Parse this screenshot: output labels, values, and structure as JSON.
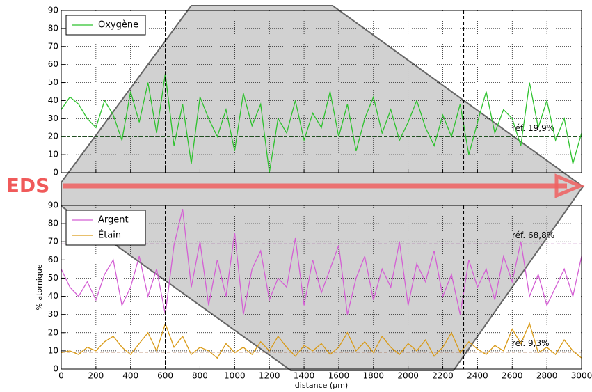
{
  "chart_data": [
    {
      "type": "line",
      "x": [
        0,
        50,
        100,
        150,
        200,
        250,
        300,
        350,
        400,
        450,
        500,
        550,
        600,
        650,
        700,
        750,
        800,
        850,
        900,
        950,
        1000,
        1050,
        1100,
        1150,
        1200,
        1250,
        1300,
        1350,
        1400,
        1450,
        1500,
        1550,
        1600,
        1650,
        1700,
        1750,
        1800,
        1850,
        1900,
        1950,
        2000,
        2050,
        2100,
        2150,
        2200,
        2250,
        2300,
        2350,
        2400,
        2450,
        2500,
        2550,
        2600,
        2650,
        2700,
        2750,
        2800,
        2850,
        2900,
        2950,
        3000
      ],
      "series": [
        {
          "name": "Oxygène",
          "color": "#2ec22e",
          "values": [
            35,
            42,
            38,
            30,
            25,
            40,
            32,
            18,
            45,
            28,
            50,
            22,
            55,
            15,
            38,
            5,
            42,
            30,
            20,
            35,
            12,
            44,
            26,
            38,
            0,
            30,
            22,
            40,
            18,
            33,
            25,
            45,
            20,
            38,
            12,
            30,
            42,
            22,
            35,
            18,
            28,
            40,
            25,
            15,
            32,
            20,
            38,
            10,
            28,
            45,
            22,
            35,
            30,
            15,
            50,
            25,
            40,
            18,
            30,
            5,
            22
          ]
        }
      ],
      "xlim": [
        0,
        3000
      ],
      "ylim": [
        0,
        90
      ],
      "xticks": [
        0,
        200,
        400,
        600,
        800,
        1000,
        1200,
        1400,
        1600,
        1800,
        2000,
        2200,
        2400,
        2600,
        2800,
        3000
      ],
      "yticks": [
        0,
        10,
        20,
        30,
        40,
        50,
        60,
        70,
        80,
        90
      ],
      "grid": true,
      "legend": "upper left",
      "vlines": [
        600,
        2320
      ],
      "reference_lines": [
        {
          "value": 19.9,
          "label": "réf. 19,9%",
          "color": "#1f4f1f"
        }
      ]
    },
    {
      "type": "line",
      "x": [
        0,
        50,
        100,
        150,
        200,
        250,
        300,
        350,
        400,
        450,
        500,
        550,
        600,
        650,
        700,
        750,
        800,
        850,
        900,
        950,
        1000,
        1050,
        1100,
        1150,
        1200,
        1250,
        1300,
        1350,
        1400,
        1450,
        1500,
        1550,
        1600,
        1650,
        1700,
        1750,
        1800,
        1850,
        1900,
        1950,
        2000,
        2050,
        2100,
        2150,
        2200,
        2250,
        2300,
        2350,
        2400,
        2450,
        2500,
        2550,
        2600,
        2650,
        2700,
        2750,
        2800,
        2850,
        2900,
        2950,
        3000
      ],
      "series": [
        {
          "name": "Argent",
          "color": "#d45fd4",
          "values": [
            55,
            45,
            40,
            48,
            38,
            52,
            60,
            35,
            45,
            62,
            40,
            55,
            30,
            68,
            88,
            45,
            70,
            35,
            60,
            40,
            75,
            30,
            55,
            65,
            38,
            50,
            45,
            72,
            35,
            60,
            42,
            55,
            68,
            30,
            50,
            62,
            38,
            55,
            45,
            70,
            35,
            58,
            48,
            65,
            40,
            52,
            30,
            60,
            45,
            55,
            38,
            62,
            48,
            70,
            40,
            52,
            35,
            45,
            55,
            40,
            62
          ]
        },
        {
          "name": "Étain",
          "color": "#d99a16",
          "values": [
            9,
            10,
            8,
            12,
            10,
            15,
            18,
            12,
            8,
            14,
            20,
            10,
            25,
            12,
            18,
            8,
            12,
            10,
            6,
            14,
            9,
            12,
            8,
            15,
            10,
            18,
            12,
            7,
            13,
            10,
            14,
            8,
            12,
            20,
            10,
            15,
            9,
            18,
            12,
            8,
            14,
            10,
            16,
            7,
            12,
            20,
            9,
            15,
            11,
            8,
            13,
            10,
            22,
            14,
            25,
            9,
            12,
            8,
            16,
            10,
            6
          ]
        }
      ],
      "xlim": [
        0,
        3000
      ],
      "ylim": [
        0,
        90
      ],
      "xticks": [
        0,
        200,
        400,
        600,
        800,
        1000,
        1200,
        1400,
        1600,
        1800,
        2000,
        2200,
        2400,
        2600,
        2800,
        3000
      ],
      "yticks": [
        0,
        10,
        20,
        30,
        40,
        50,
        60,
        70,
        80,
        90
      ],
      "grid": true,
      "legend": "upper left",
      "xlabel": "distance (µm)",
      "ylabel": "% atomique",
      "vlines": [
        600,
        2320
      ],
      "reference_lines": [
        {
          "value": 68.8,
          "label": "réf. 68,8%",
          "color": "#800080"
        },
        {
          "value": 9.3,
          "label": "réf. 9,3%",
          "color": "#8b3a0f"
        }
      ]
    }
  ],
  "overlay": {
    "label": "EDS"
  }
}
